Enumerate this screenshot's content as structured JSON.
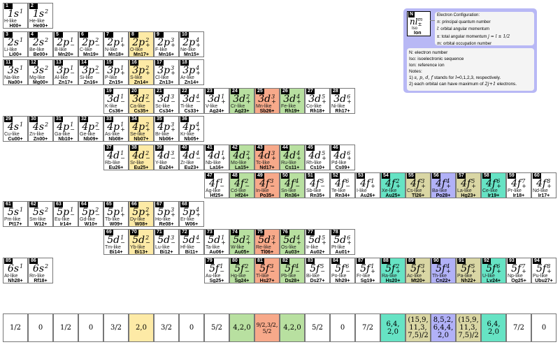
{
  "colors": {
    "yellow": "#fdeaa6",
    "green": "#b8e0a0",
    "salmon": "#f7a98a",
    "teal": "#66e3c4",
    "khaki": "#d9d6a4",
    "lavender": "#b1b1f7"
  },
  "column_colors": {
    "5": "yellow",
    "9": "green",
    "10": "salmon",
    "11": "green",
    "15": "teal",
    "16": "khaki",
    "17": "lavender",
    "18": "khaki",
    "19": "teal"
  },
  "cells": [
    {
      "N": "1",
      "c": 0,
      "r": 0,
      "o": "1s",
      "pm": "",
      "m": "1",
      "like": "H-like",
      "ion": "H00+"
    },
    {
      "N": "2",
      "c": 1,
      "r": 0,
      "o": "1s",
      "pm": "",
      "m": "2",
      "like": "He-like",
      "ion": "He00+"
    },
    {
      "N": "3",
      "c": 0,
      "r": 1,
      "o": "2s",
      "pm": "",
      "m": "1",
      "like": "Li-like",
      "ion": "Li00+"
    },
    {
      "N": "4",
      "c": 1,
      "r": 1,
      "o": "2s",
      "pm": "",
      "m": "2",
      "like": "Be-like",
      "ion": "Be00+"
    },
    {
      "N": "5",
      "c": 2,
      "r": 1,
      "o": "2p",
      "pm": "−",
      "m": "1",
      "like": "B-like",
      "ion": "Mn20+"
    },
    {
      "N": "6",
      "c": 3,
      "r": 1,
      "o": "2p",
      "pm": "−",
      "m": "2",
      "like": "C-like",
      "ion": "Mn19+"
    },
    {
      "N": "7",
      "c": 4,
      "r": 1,
      "o": "2p",
      "pm": "+",
      "m": "1",
      "like": "N-like",
      "ion": "Mn18+"
    },
    {
      "N": "8",
      "c": 5,
      "r": 1,
      "o": "2p",
      "pm": "+",
      "m": "2",
      "like": "O-like",
      "ion": "Mn17+"
    },
    {
      "N": "9",
      "c": 6,
      "r": 1,
      "o": "2p",
      "pm": "+",
      "m": "3",
      "like": "F-like",
      "ion": "Mn16+"
    },
    {
      "N": "10",
      "c": 7,
      "r": 1,
      "o": "2p",
      "pm": "+",
      "m": "4",
      "like": "Ne-like",
      "ion": "Mn15+"
    },
    {
      "N": "11",
      "c": 0,
      "r": 2,
      "o": "3s",
      "pm": "",
      "m": "1",
      "like": "Na-like",
      "ion": "Na00+"
    },
    {
      "N": "12",
      "c": 1,
      "r": 2,
      "o": "3s",
      "pm": "",
      "m": "2",
      "like": "Mg-like",
      "ion": "Mg00+"
    },
    {
      "N": "13",
      "c": 2,
      "r": 2,
      "o": "3p",
      "pm": "−",
      "m": "1",
      "like": "Al-like",
      "ion": "Zn17+"
    },
    {
      "N": "14",
      "c": 3,
      "r": 2,
      "o": "3p",
      "pm": "−",
      "m": "2",
      "like": "Si-like",
      "ion": "Zn16+"
    },
    {
      "N": "15",
      "c": 4,
      "r": 2,
      "o": "3p",
      "pm": "+",
      "m": "1",
      "like": "P-like",
      "ion": "Zn15+"
    },
    {
      "N": "16",
      "c": 5,
      "r": 2,
      "o": "3p",
      "pm": "+",
      "m": "2",
      "like": "S-like",
      "ion": "Zn14+"
    },
    {
      "N": "17",
      "c": 6,
      "r": 2,
      "o": "3p",
      "pm": "+",
      "m": "3",
      "like": "Cl-like",
      "ion": "Zn13+"
    },
    {
      "N": "18",
      "c": 7,
      "r": 2,
      "o": "3p",
      "pm": "+",
      "m": "4",
      "like": "Ar-like",
      "ion": "Zn14+"
    },
    {
      "N": "19",
      "c": 4,
      "r": 3,
      "o": "3d",
      "pm": "−",
      "m": "1",
      "like": "K-like",
      "ion": "Cs36+"
    },
    {
      "N": "20",
      "c": 5,
      "r": 3,
      "o": "3d",
      "pm": "−",
      "m": "2",
      "like": "Ca-like",
      "ion": "Cs35+"
    },
    {
      "N": "21",
      "c": 6,
      "r": 3,
      "o": "3d",
      "pm": "−",
      "m": "3",
      "like": "Sc-like",
      "ion": "Cs34+"
    },
    {
      "N": "22",
      "c": 7,
      "r": 3,
      "o": "3d",
      "pm": "−",
      "m": "4",
      "like": "Ti-like",
      "ion": "Cs33+"
    },
    {
      "N": "23",
      "c": 8,
      "r": 3,
      "o": "3d",
      "pm": "+",
      "m": "1",
      "like": "V-like",
      "ion": "Ag24+"
    },
    {
      "N": "24",
      "c": 9,
      "r": 3,
      "o": "3d",
      "pm": "+",
      "m": "2",
      "like": "Cr-like",
      "ion": "Ag23+"
    },
    {
      "N": "25",
      "c": 10,
      "r": 3,
      "o": "3d",
      "pm": "+",
      "m": "3",
      "like": "Mn-like",
      "ion": "Sb26+"
    },
    {
      "N": "26",
      "c": 11,
      "r": 3,
      "o": "3d",
      "pm": "+",
      "m": "4",
      "like": "Fe-like",
      "ion": "Rh19+"
    },
    {
      "N": "27",
      "c": 12,
      "r": 3,
      "o": "3d",
      "pm": "+",
      "m": "5",
      "like": "Co-like",
      "ion": "Rh18+"
    },
    {
      "N": "28",
      "c": 13,
      "r": 3,
      "o": "3d",
      "pm": "+",
      "m": "6",
      "like": "Ni-like",
      "ion": "Rh17+"
    },
    {
      "N": "29",
      "c": 0,
      "r": 4,
      "o": "4s",
      "pm": "",
      "m": "1",
      "like": "Cu-like",
      "ion": "Cu00+"
    },
    {
      "N": "30",
      "c": 1,
      "r": 4,
      "o": "4s",
      "pm": "",
      "m": "2",
      "like": "Zn-like",
      "ion": "Zn00+"
    },
    {
      "N": "31",
      "c": 2,
      "r": 4,
      "o": "4p",
      "pm": "−",
      "m": "1",
      "like": "Ga-like",
      "ion": "Nb10+"
    },
    {
      "N": "32",
      "c": 3,
      "r": 4,
      "o": "4p",
      "pm": "−",
      "m": "2",
      "like": "Ge-like",
      "ion": "Nb09+"
    },
    {
      "N": "33",
      "c": 4,
      "r": 4,
      "o": "4p",
      "pm": "+",
      "m": "1",
      "like": "As-like",
      "ion": "Nb08+"
    },
    {
      "N": "34",
      "c": 5,
      "r": 4,
      "o": "4p",
      "pm": "+",
      "m": "2",
      "like": "Se-like",
      "ion": "Nb07+"
    },
    {
      "N": "35",
      "c": 6,
      "r": 4,
      "o": "4p",
      "pm": "+",
      "m": "3",
      "like": "Br-like",
      "ion": "Nb06+"
    },
    {
      "N": "36",
      "c": 7,
      "r": 4,
      "o": "4p",
      "pm": "+",
      "m": "4",
      "like": "Kr-like",
      "ion": "Nb05+"
    },
    {
      "N": "37",
      "c": 4,
      "r": 5,
      "o": "4d",
      "pm": "−",
      "m": "1",
      "like": "Rb-like",
      "ion": "Eu26+"
    },
    {
      "N": "38",
      "c": 5,
      "r": 5,
      "o": "4d",
      "pm": "−",
      "m": "2",
      "like": "Sr-like",
      "ion": "Eu25+"
    },
    {
      "N": "39",
      "c": 6,
      "r": 5,
      "o": "4d",
      "pm": "−",
      "m": "3",
      "like": "Y-like",
      "ion": "Eu24+"
    },
    {
      "N": "40",
      "c": 7,
      "r": 5,
      "o": "4d",
      "pm": "−",
      "m": "4",
      "like": "Zr-like",
      "ion": "Eu23+"
    },
    {
      "N": "41",
      "c": 8,
      "r": 5,
      "o": "4d",
      "pm": "+",
      "m": "1",
      "like": "Nb-like",
      "ion": "La16+"
    },
    {
      "N": "42",
      "c": 9,
      "r": 5,
      "o": "4d",
      "pm": "+",
      "m": "2",
      "like": "Mo-like",
      "ion": "La15+"
    },
    {
      "N": "43",
      "c": 10,
      "r": 5,
      "o": "4d",
      "pm": "+",
      "m": "3",
      "like": "Tc-like",
      "ion": "Nd17+"
    },
    {
      "N": "44",
      "c": 11,
      "r": 5,
      "o": "4d",
      "pm": "+",
      "m": "4",
      "like": "Ru-like",
      "ion": "Cs11+"
    },
    {
      "N": "45",
      "c": 12,
      "r": 5,
      "o": "4d",
      "pm": "+",
      "m": "5",
      "like": "Rh-like",
      "ion": "Cs10+"
    },
    {
      "N": "46",
      "c": 13,
      "r": 5,
      "o": "4d",
      "pm": "+",
      "m": "6",
      "like": "Pd-like",
      "ion": "Cs09+"
    },
    {
      "N": "47",
      "c": 8,
      "r": 6,
      "o": "4f",
      "pm": "−",
      "m": "1",
      "like": "Ag-like",
      "ion": "Hf25+"
    },
    {
      "N": "48",
      "c": 9,
      "r": 6,
      "o": "4f",
      "pm": "−",
      "m": "2",
      "like": "Cd-like",
      "ion": "Hf24+"
    },
    {
      "N": "49",
      "c": 10,
      "r": 6,
      "o": "4f",
      "pm": "−",
      "m": "3",
      "like": "In-like",
      "ion": "Po35+"
    },
    {
      "N": "50",
      "c": 11,
      "r": 6,
      "o": "4f",
      "pm": "−",
      "m": "4",
      "like": "Sn-like",
      "ion": "Rn36+"
    },
    {
      "N": "51",
      "c": 12,
      "r": 6,
      "o": "4f",
      "pm": "−",
      "m": "5",
      "like": "Sb-like",
      "ion": "Rn35+"
    },
    {
      "N": "52",
      "c": 13,
      "r": 6,
      "o": "4f",
      "pm": "−",
      "m": "6",
      "like": "Te-like",
      "ion": "Rn34+"
    },
    {
      "N": "53",
      "c": 14,
      "r": 6,
      "o": "4f",
      "pm": "+",
      "m": "1",
      "like": "I-like",
      "ion": "Au26+"
    },
    {
      "N": "54",
      "c": 15,
      "r": 6,
      "o": "4f",
      "pm": "+",
      "m": "2",
      "like": "Xe-like",
      "ion": "Au25+"
    },
    {
      "N": "55",
      "c": 16,
      "r": 6,
      "o": "4f",
      "pm": "+",
      "m": "3",
      "like": "Cs-like",
      "ion": "Tl26+"
    },
    {
      "N": "56",
      "c": 17,
      "r": 6,
      "o": "4f",
      "pm": "+",
      "m": "4",
      "like": "Ba-like",
      "ion": "Po28+"
    },
    {
      "N": "57",
      "c": 18,
      "r": 6,
      "o": "4f",
      "pm": "+",
      "m": "5",
      "like": "La-like",
      "ion": "Hg23+"
    },
    {
      "N": "58",
      "c": 19,
      "r": 6,
      "o": "4f",
      "pm": "+",
      "m": "6",
      "like": "Ce-like",
      "ion": "Ir19+"
    },
    {
      "N": "59",
      "c": 20,
      "r": 6,
      "o": "4f",
      "pm": "+",
      "m": "7",
      "like": "Pr-like",
      "ion": "Ir18+"
    },
    {
      "N": "60",
      "c": 21,
      "r": 6,
      "o": "4f",
      "pm": "+",
      "m": "8",
      "like": "Nd-like",
      "ion": "Ir17+"
    },
    {
      "N": "61",
      "c": 0,
      "r": 7,
      "o": "5s",
      "pm": "",
      "m": "1",
      "like": "Pm-like",
      "ion": "Pt17+"
    },
    {
      "N": "62",
      "c": 1,
      "r": 7,
      "o": "5s",
      "pm": "",
      "m": "2",
      "like": "Sm-like",
      "ion": "W12+"
    },
    {
      "N": "63",
      "c": 2,
      "r": 7,
      "o": "5p",
      "pm": "−",
      "m": "1",
      "like": "Eu-like",
      "ion": "Ir14+"
    },
    {
      "N": "64",
      "c": 3,
      "r": 7,
      "o": "5p",
      "pm": "−",
      "m": "2",
      "like": "Gd-like",
      "ion": "W10+"
    },
    {
      "N": "65",
      "c": 4,
      "r": 7,
      "o": "5p",
      "pm": "+",
      "m": "1",
      "like": "Tb-like",
      "ion": "W09+"
    },
    {
      "N": "66",
      "c": 5,
      "r": 7,
      "o": "5p",
      "pm": "+",
      "m": "2",
      "like": "Dy-like",
      "ion": "W08+"
    },
    {
      "N": "67",
      "c": 6,
      "r": 7,
      "o": "5p",
      "pm": "+",
      "m": "3",
      "like": "Ho-like",
      "ion": "Re08+"
    },
    {
      "N": "68",
      "c": 7,
      "r": 7,
      "o": "5p",
      "pm": "+",
      "m": "4",
      "like": "Er-like",
      "ion": "W06+"
    },
    {
      "N": "69",
      "c": 4,
      "r": 8,
      "o": "5d",
      "pm": "−",
      "m": "1",
      "like": "Tm-like",
      "ion": "Bi14+"
    },
    {
      "N": "70",
      "c": 5,
      "r": 8,
      "o": "5d",
      "pm": "−",
      "m": "2",
      "like": "Yb-like",
      "ion": "Bi13+"
    },
    {
      "N": "71",
      "c": 6,
      "r": 8,
      "o": "5d",
      "pm": "−",
      "m": "3",
      "like": "Lu-like",
      "ion": "Bi12+"
    },
    {
      "N": "72",
      "c": 7,
      "r": 8,
      "o": "5d",
      "pm": "−",
      "m": "4",
      "like": "Hf-like",
      "ion": "Bi11+"
    },
    {
      "N": "73",
      "c": 8,
      "r": 8,
      "o": "5d",
      "pm": "+",
      "m": "1",
      "like": "Ta-like",
      "ion": "Au06+"
    },
    {
      "N": "74",
      "c": 9,
      "r": 8,
      "o": "5d",
      "pm": "+",
      "m": "2",
      "like": "W-like",
      "ion": "Au05+"
    },
    {
      "N": "75",
      "c": 10,
      "r": 8,
      "o": "5d",
      "pm": "+",
      "m": "3",
      "like": "Re-like",
      "ion": "Tl06+"
    },
    {
      "N": "76",
      "c": 11,
      "r": 8,
      "o": "5d",
      "pm": "+",
      "m": "4",
      "like": "Os-like",
      "ion": "Au03+"
    },
    {
      "N": "77",
      "c": 12,
      "r": 8,
      "o": "5d",
      "pm": "+",
      "m": "5",
      "like": "Ir-like",
      "ion": "Au02+"
    },
    {
      "N": "78",
      "c": 13,
      "r": 8,
      "o": "5d",
      "pm": "+",
      "m": "6",
      "like": "Pt-like",
      "ion": "Au01+"
    },
    {
      "N": "85",
      "c": 0,
      "r": 9,
      "o": "6s",
      "pm": "",
      "m": "1",
      "like": "At-like",
      "ion": "Nh28+"
    },
    {
      "N": "86",
      "c": 1,
      "r": 9,
      "o": "6s",
      "pm": "",
      "m": "2",
      "like": "Rn-like",
      "ion": "Rf18+"
    },
    {
      "N": "79",
      "c": 8,
      "r": 9,
      "o": "5f",
      "pm": "−",
      "m": "1",
      "like": "Au-like",
      "ion": "Sg25+"
    },
    {
      "N": "80",
      "c": 9,
      "r": 9,
      "o": "5f",
      "pm": "−",
      "m": "2",
      "like": "Hg-like",
      "ion": "Sg24+"
    },
    {
      "N": "81",
      "c": 10,
      "r": 9,
      "o": "5f",
      "pm": "−",
      "m": "3",
      "like": "Tl-like",
      "ion": "Hs27+"
    },
    {
      "N": "82",
      "c": 11,
      "r": 9,
      "o": "5f",
      "pm": "−",
      "m": "4",
      "like": "Pb-like",
      "ion": "Ds28+"
    },
    {
      "N": "83",
      "c": 12,
      "r": 9,
      "o": "5f",
      "pm": "−",
      "m": "5",
      "like": "Bi-like",
      "ion": "Ds27+"
    },
    {
      "N": "84",
      "c": 13,
      "r": 9,
      "o": "5f",
      "pm": "−",
      "m": "6",
      "like": "Po-like",
      "ion": "Nh29+"
    },
    {
      "N": "87",
      "c": 14,
      "r": 9,
      "o": "5f",
      "pm": "+",
      "m": "1",
      "like": "Fr-like",
      "ion": "Sg19+"
    },
    {
      "N": "88",
      "c": 15,
      "r": 9,
      "o": "5f",
      "pm": "+",
      "m": "2",
      "like": "Ra-like",
      "ion": "Hs20+"
    },
    {
      "N": "89",
      "c": 16,
      "r": 9,
      "o": "5f",
      "pm": "+",
      "m": "3",
      "like": "Ac-like",
      "ion": "Mt20+"
    },
    {
      "N": "90",
      "c": 17,
      "r": 9,
      "o": "5f",
      "pm": "+",
      "m": "4",
      "like": "Th-like",
      "ion": "Cn22+"
    },
    {
      "N": "91",
      "c": 18,
      "r": 9,
      "o": "5f",
      "pm": "+",
      "m": "5",
      "like": "Pa-like",
      "ion": "Nh22+"
    },
    {
      "N": "92",
      "c": 19,
      "r": 9,
      "o": "5f",
      "pm": "+",
      "m": "6",
      "like": "U-like",
      "ion": "Lv24+"
    },
    {
      "N": "93",
      "c": 20,
      "r": 9,
      "o": "5f",
      "pm": "+",
      "m": "7",
      "like": "Np-like",
      "ion": "Og25+"
    },
    {
      "N": "94",
      "c": 21,
      "r": 9,
      "o": "5f",
      "pm": "+",
      "m": "8",
      "like": "Pu-like",
      "ion": "Ubu27+"
    }
  ],
  "bottom_row": [
    [
      "1/2"
    ],
    [
      "0"
    ],
    [
      "1/2"
    ],
    [
      "0"
    ],
    [
      "3/2"
    ],
    [
      "2,0"
    ],
    [
      "3/2"
    ],
    [
      "0"
    ],
    [
      "5/2"
    ],
    [
      "4,2,0"
    ],
    [
      "9/2,3/2,5/2"
    ],
    [
      "4,2,0"
    ],
    [
      "5/2"
    ],
    [
      "0"
    ],
    [
      "7/2"
    ],
    [
      "6,4,",
      "2,0"
    ],
    [
      "(15,9,",
      "11,3,",
      "7,5)/2"
    ],
    [
      "8,5,2,",
      "6,4,4,",
      "2,0"
    ],
    [
      "(15,9,",
      "11,3,",
      "7,5)/2"
    ],
    [
      "6,4,",
      "2,0"
    ],
    [
      "7/2"
    ],
    [
      "0"
    ]
  ],
  "legend": {
    "sample": {
      "N": "N",
      "config": "nl",
      "sup": "m",
      "sub": "±",
      "iso": "Iso",
      "ion": "Ion"
    },
    "title": "Electron Configuration:",
    "lines": [
      {
        "sym": "n",
        "text": ": principal quantum number"
      },
      {
        "sym": "l",
        "text": ": orbital angular momentum"
      },
      {
        "sym": "±",
        "text": ": total angular momentum",
        "math": "j = l ± 1/2"
      },
      {
        "sym": "m",
        "text": ": orbital occupation number"
      }
    ],
    "defs": [
      "N: electron number",
      "Iso: isoelectronic sequence",
      "Ion: reference ion"
    ],
    "notes_title": "Notes:",
    "note1_pre": "1) ",
    "note1_math": "s, p, d, f",
    "note1_mid": " stands for ",
    "note1_math2": "l",
    "note1_post": "=0,1,2,3, respectively.",
    "note2_pre": "2) each orbital can have maximum of ",
    "note2_math": "2j+1",
    "note2_post": " electrons."
  }
}
